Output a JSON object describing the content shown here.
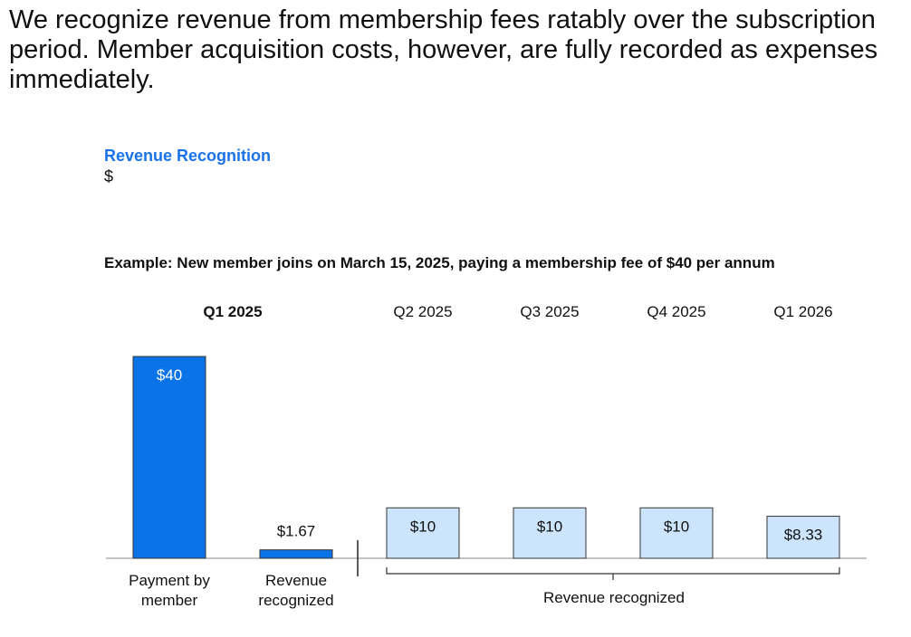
{
  "headline": "We recognize revenue from membership fees ratably over the subscription period. Member acquisition costs, however, are fully recorded as expenses immediately.",
  "chart_data": {
    "type": "bar",
    "title": "Revenue Recognition",
    "ylabel": "$",
    "subtitle": "Example: New member joins on March 15, 2025, paying a membership fee of $40 per annum",
    "ylim": [
      0,
      40
    ],
    "period_labels": [
      {
        "label": "Q1 2025",
        "bold": true
      },
      {
        "label": "Q2 2025",
        "bold": false
      },
      {
        "label": "Q3 2025",
        "bold": false
      },
      {
        "label": "Q4 2025",
        "bold": false
      },
      {
        "label": "Q1 2026",
        "bold": false
      }
    ],
    "bars": [
      {
        "value": 40,
        "label": "$40",
        "category": "Payment by member",
        "period": "Q1 2025",
        "style": "dark",
        "label_position": "inside"
      },
      {
        "value": 1.67,
        "label": "$1.67",
        "category": "Revenue recognized",
        "period": "Q1 2025",
        "style": "dark",
        "label_position": "above"
      },
      {
        "value": 10,
        "label": "$10",
        "period": "Q2 2025",
        "style": "light",
        "label_position": "inside"
      },
      {
        "value": 10,
        "label": "$10",
        "period": "Q3 2025",
        "style": "light",
        "label_position": "inside"
      },
      {
        "value": 10,
        "label": "$10",
        "period": "Q4 2025",
        "style": "light",
        "label_position": "inside"
      },
      {
        "value": 8.33,
        "label": "$8.33",
        "period": "Q1 2026",
        "style": "light",
        "label_position": "inside"
      }
    ],
    "category_labels": [
      [
        "Payment by",
        "member"
      ],
      [
        "Revenue",
        "recognized"
      ]
    ],
    "bracket_label": "Revenue recognized",
    "colors": {
      "dark": "#0a73e8",
      "light": "#cce4fc",
      "title": "#1a73e8"
    }
  }
}
